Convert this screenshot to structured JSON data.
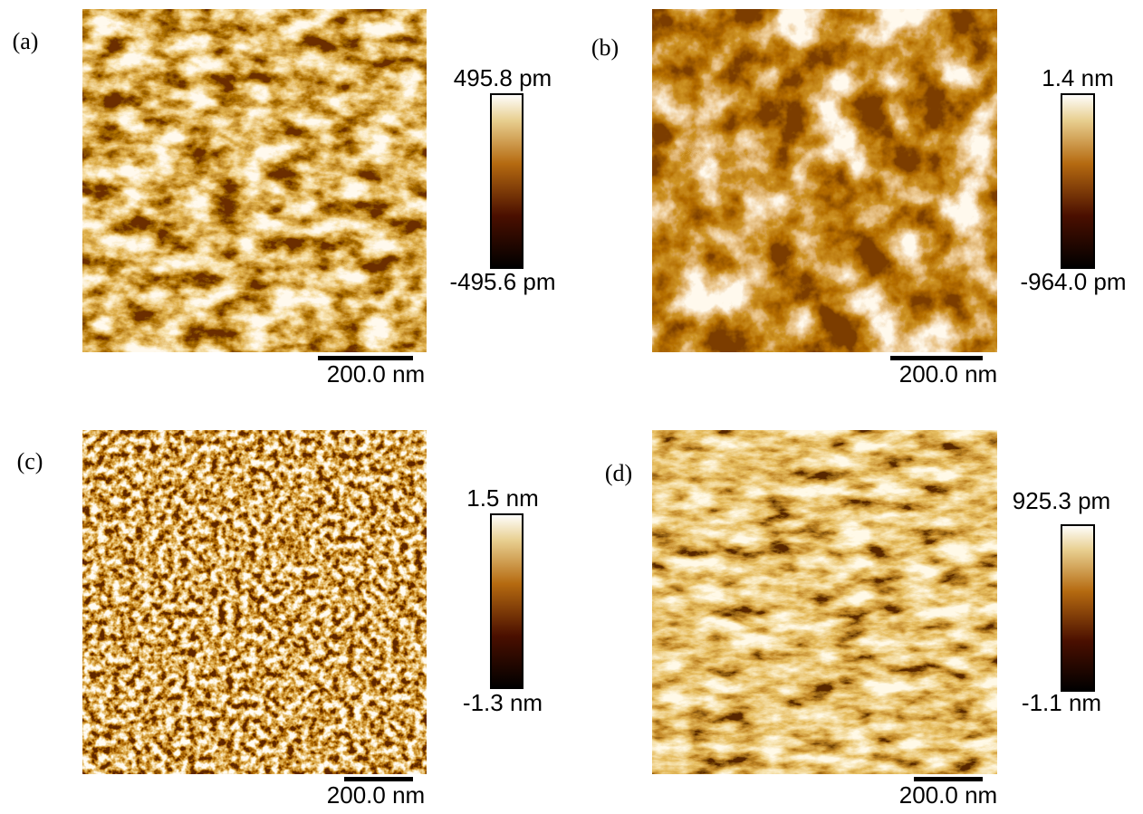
{
  "panels": [
    {
      "label": "(a)",
      "colorbar_max": "495.8 pm",
      "colorbar_min": "-495.6 pm",
      "scale_bar": "200.0 nm"
    },
    {
      "label": "(b)",
      "colorbar_max": "1.4 nm",
      "colorbar_min": "-964.0 pm",
      "scale_bar": "200.0 nm"
    },
    {
      "label": "(c)",
      "colorbar_max": "1.5 nm",
      "colorbar_min": "-1.3 nm",
      "scale_bar": "200.0 nm"
    },
    {
      "label": "(d)",
      "colorbar_max": "925.3 pm",
      "colorbar_min": "-1.1 nm",
      "scale_bar": "200.0 nm"
    }
  ]
}
